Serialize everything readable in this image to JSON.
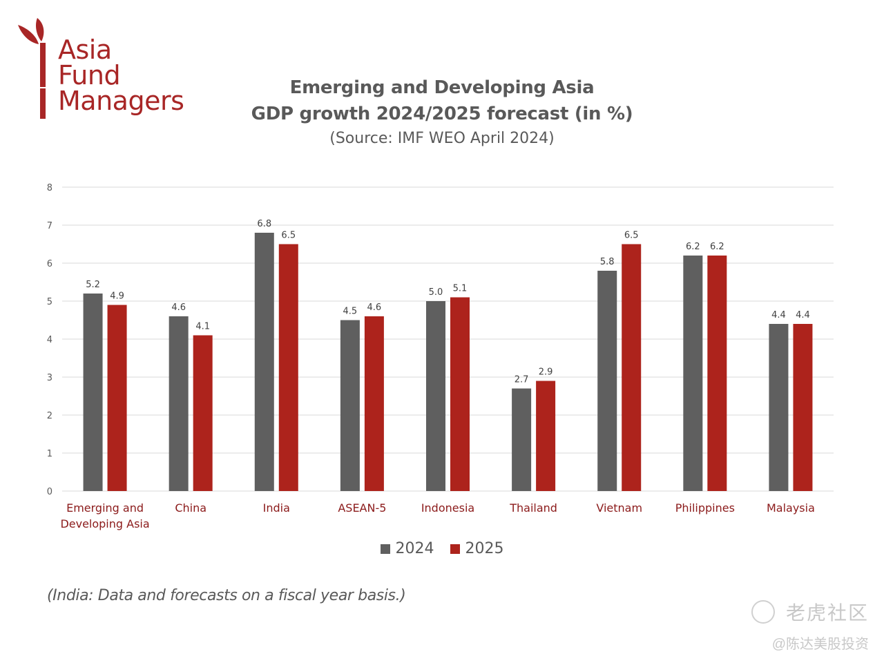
{
  "logo": {
    "lines": [
      "Asia",
      "Fund",
      "Managers"
    ],
    "color": "#a82626"
  },
  "header": {
    "title_line1": "Emerging and Developing Asia",
    "title_line2": "GDP growth 2024/2025 forecast (in %)",
    "subtitle": "(Source: IMF WEO April 2024)"
  },
  "footnote": "(India: Data and forecasts on a fiscal year basis.)",
  "watermark": {
    "line1": "老虎社区",
    "line2": "@陈达美股投资"
  },
  "chart_data": {
    "type": "bar",
    "title": "Emerging and Developing Asia GDP growth 2024/2025 forecast (in %)",
    "subtitle": "(Source: IMF WEO April 2024)",
    "xlabel": "",
    "ylabel": "",
    "ylim": [
      0,
      8
    ],
    "yticks": [
      0,
      1,
      2,
      3,
      4,
      5,
      6,
      7,
      8
    ],
    "grid": true,
    "legend_position": "bottom",
    "categories": [
      "Emerging and Developing Asia",
      "China",
      "India",
      "ASEAN-5",
      "Indonesia",
      "Thailand",
      "Vietnam",
      "Philippines",
      "Malaysia"
    ],
    "series": [
      {
        "name": "2024",
        "color": "#5f5f5f",
        "values": [
          5.2,
          4.6,
          6.8,
          4.5,
          5.0,
          2.7,
          5.8,
          6.2,
          4.4
        ]
      },
      {
        "name": "2025",
        "color": "#ad231c",
        "values": [
          4.9,
          4.1,
          6.5,
          4.6,
          5.1,
          2.9,
          6.5,
          6.2,
          4.4
        ]
      }
    ],
    "category_label_color": "#8b1a1a"
  }
}
